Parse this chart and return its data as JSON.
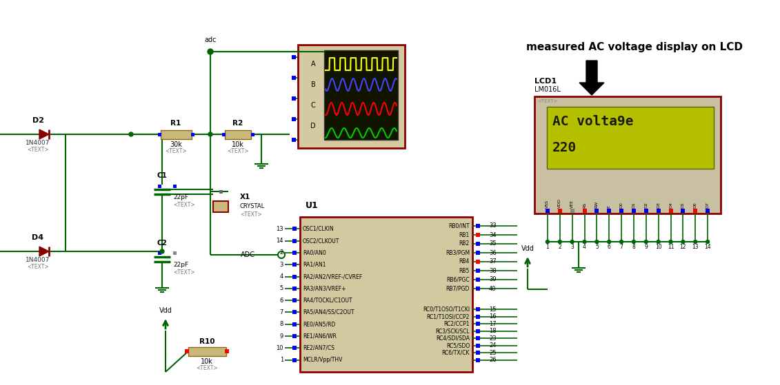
{
  "bg_color": "#ffffff",
  "cc": "#006400",
  "dr": "#8B0000",
  "tan": "#c8b87a",
  "dark_tan": "#8B6914",
  "ic_fill": "#d2c9a0",
  "osc_fill": "#d4c9a0",
  "lcd_fill": "#c8c0a0",
  "lcd_screen": "#b5c000",
  "lcd_text": "#1a1a00",
  "title": "measured AC voltage display on LCD",
  "lcd_line1": "AC volta9e",
  "lcd_line2": "220",
  "lcd_label": "LCD1",
  "lcd_model": "LM016L",
  "ic_label": "U1",
  "ic_left_pins": [
    {
      "num": "13",
      "name": "OSC1/CLKIN"
    },
    {
      "num": "14",
      "name": "OSC2/CLKOUT"
    },
    {
      "num": "2",
      "name": "RA0/AN0"
    },
    {
      "num": "3",
      "name": "RA1/AN1"
    },
    {
      "num": "4",
      "name": "RA2/AN2/VREF-/CVREF"
    },
    {
      "num": "5",
      "name": "RA3/AN3/VREF+"
    },
    {
      "num": "6",
      "name": "RA4/TOCKL/C1OUT"
    },
    {
      "num": "7",
      "name": "RA5/AN4/SS/C2OUT"
    },
    {
      "num": "8",
      "name": "RE0/AN5/RD"
    },
    {
      "num": "9",
      "name": "RE1/AN6/WR"
    },
    {
      "num": "10",
      "name": "RE2/AN7/CS"
    },
    {
      "num": "1",
      "name": "MCLR/Vpp/THV"
    }
  ],
  "ic_right_pins_top": [
    {
      "num": "33",
      "name": "RB0/INT"
    },
    {
      "num": "34",
      "name": "RB1"
    },
    {
      "num": "35",
      "name": "RB2"
    },
    {
      "num": "36",
      "name": "RB3/PGM"
    },
    {
      "num": "37",
      "name": "RB4"
    },
    {
      "num": "38",
      "name": "RB5"
    },
    {
      "num": "39",
      "name": "RB6/PGC"
    },
    {
      "num": "40",
      "name": "RB7/PGD"
    }
  ],
  "ic_right_pins_bot": [
    {
      "num": "15",
      "name": "RC0/T1OSO/T1CKI"
    },
    {
      "num": "16",
      "name": "RC1/T1OSI/CCP2"
    },
    {
      "num": "17",
      "name": "RC2/CCP1"
    },
    {
      "num": "18",
      "name": "RC3/SCK/SCL"
    },
    {
      "num": "23",
      "name": "RC4/SDI/SDA"
    },
    {
      "num": "24",
      "name": "RC5/SDO"
    },
    {
      "num": "25",
      "name": "RC6/TX/CK"
    },
    {
      "num": "26",
      "name": ""
    }
  ],
  "lcd_pins": [
    "VSS",
    "VDD",
    "VEE",
    "RS",
    "RW",
    "E",
    "D0",
    "D1",
    "D2",
    "D3",
    "D4",
    "D5",
    "D6",
    "D7"
  ],
  "lcd_pin_nums": [
    "1",
    "2",
    "3",
    "4",
    "5",
    "6",
    "7",
    "8",
    "9",
    "10",
    "11",
    "12",
    "13",
    "14"
  ],
  "lcd_pin_colors": [
    "blue",
    "red",
    "#888888",
    "red",
    "blue",
    "blue",
    "blue",
    "blue",
    "blue",
    "blue",
    "red",
    "blue",
    "red",
    "blue"
  ]
}
